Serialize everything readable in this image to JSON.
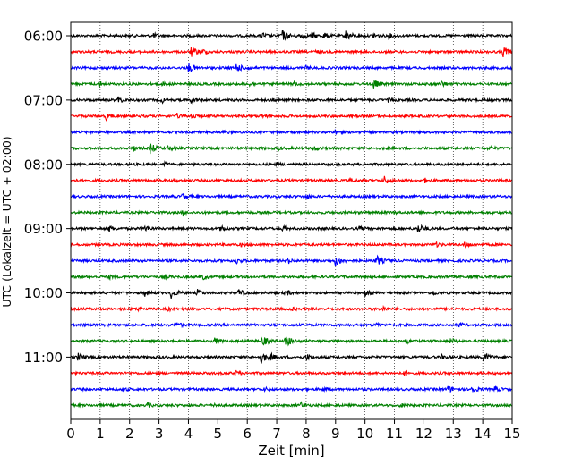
{
  "chart_data": {
    "type": "line",
    "title": "",
    "xlabel": "Zeit  [min]",
    "ylabel": "UTC (Lokalzeit = UTC + 02:00)",
    "xlim": [
      0,
      15
    ],
    "x_ticks": [
      "0",
      "1",
      "2",
      "3",
      "4",
      "5",
      "6",
      "7",
      "8",
      "9",
      "10",
      "11",
      "12",
      "13",
      "14",
      "15"
    ],
    "y_ticks": [
      {
        "label": "06:00",
        "trace": 0
      },
      {
        "label": "07:00",
        "trace": 4
      },
      {
        "label": "08:00",
        "trace": 8
      },
      {
        "label": "09:00",
        "trace": 12
      },
      {
        "label": "10:00",
        "trace": 16
      },
      {
        "label": "11:00",
        "trace": 20
      }
    ],
    "grid": "vertical dotted",
    "trace_interval_min": 15,
    "colors": [
      "#000000",
      "#ff0000",
      "#0000ff",
      "#008000"
    ],
    "traces": [
      {
        "start": "06:00",
        "color": "#000000",
        "events": [
          [
            2.8,
            0.4
          ],
          [
            6.5,
            0.5
          ],
          [
            7.15,
            1.0
          ],
          [
            7.8,
            0.5
          ],
          [
            8.2,
            0.5
          ],
          [
            8.6,
            0.5
          ],
          [
            9.35,
            0.8
          ],
          [
            10.3,
            0.5
          ],
          [
            10.8,
            0.4
          ]
        ]
      },
      {
        "start": "06:15",
        "color": "#ff0000",
        "events": [
          [
            4.1,
            0.8
          ],
          [
            4.5,
            0.4
          ],
          [
            8.3,
            0.3
          ],
          [
            14.7,
            0.9
          ]
        ]
      },
      {
        "start": "06:30",
        "color": "#0000ff",
        "events": [
          [
            4.0,
            0.8
          ],
          [
            5.6,
            0.8
          ],
          [
            6.0,
            0.4
          ],
          [
            8.0,
            0.3
          ]
        ]
      },
      {
        "start": "06:45",
        "color": "#008000",
        "events": [
          [
            1.0,
            0.3
          ],
          [
            3.1,
            0.3
          ],
          [
            6.1,
            0.4
          ],
          [
            7.6,
            0.3
          ],
          [
            10.3,
            0.7
          ],
          [
            12.6,
            0.5
          ]
        ]
      },
      {
        "start": "07:00",
        "color": "#000000",
        "events": [
          [
            1.6,
            0.5
          ],
          [
            3.1,
            0.4
          ],
          [
            4.1,
            0.5
          ],
          [
            6.9,
            0.3
          ],
          [
            10.8,
            0.3
          ]
        ]
      },
      {
        "start": "07:15",
        "color": "#ff0000",
        "events": [
          [
            1.2,
            0.5
          ],
          [
            3.6,
            0.4
          ],
          [
            4.1,
            0.5
          ],
          [
            6.5,
            0.3
          ]
        ]
      },
      {
        "start": "07:30",
        "color": "#0000ff",
        "events": [
          [
            5.2,
            0.3
          ],
          [
            9.0,
            0.3
          ]
        ]
      },
      {
        "start": "07:45",
        "color": "#008000",
        "events": [
          [
            2.1,
            0.5
          ],
          [
            2.7,
            0.8
          ],
          [
            3.3,
            0.4
          ],
          [
            7.0,
            0.4
          ],
          [
            8.2,
            0.5
          ],
          [
            14.2,
            0.4
          ]
        ]
      },
      {
        "start": "08:00",
        "color": "#000000",
        "events": [
          [
            3.2,
            0.3
          ],
          [
            7.0,
            0.3
          ]
        ]
      },
      {
        "start": "08:15",
        "color": "#ff0000",
        "events": [
          [
            3.5,
            0.3
          ],
          [
            9.5,
            0.3
          ],
          [
            10.65,
            0.7
          ],
          [
            12.0,
            0.4
          ]
        ]
      },
      {
        "start": "08:30",
        "color": "#0000ff",
        "events": [
          [
            3.8,
            0.5
          ],
          [
            8.0,
            0.3
          ]
        ]
      },
      {
        "start": "08:45",
        "color": "#008000",
        "events": [
          [
            3.8,
            0.3
          ],
          [
            11.0,
            0.2
          ]
        ]
      },
      {
        "start": "09:00",
        "color": "#000000",
        "events": [
          [
            1.3,
            0.5
          ],
          [
            2.5,
            0.5
          ],
          [
            5.1,
            0.5
          ],
          [
            7.2,
            0.4
          ],
          [
            9.8,
            0.3
          ],
          [
            11.8,
            0.8
          ]
        ]
      },
      {
        "start": "09:15",
        "color": "#ff0000",
        "events": [
          [
            5.8,
            0.3
          ],
          [
            12.4,
            0.4
          ],
          [
            13.4,
            0.5
          ]
        ]
      },
      {
        "start": "09:30",
        "color": "#0000ff",
        "events": [
          [
            5.6,
            0.5
          ],
          [
            7.4,
            0.4
          ],
          [
            9.0,
            0.8
          ],
          [
            10.4,
            0.8
          ]
        ]
      },
      {
        "start": "09:45",
        "color": "#008000",
        "events": [
          [
            1.3,
            0.3
          ],
          [
            3.2,
            0.3
          ],
          [
            4.5,
            0.4
          ]
        ]
      },
      {
        "start": "10:00",
        "color": "#000000",
        "events": [
          [
            2.5,
            0.5
          ],
          [
            3.4,
            0.8
          ],
          [
            4.3,
            0.5
          ],
          [
            5.7,
            0.6
          ],
          [
            7.3,
            0.5
          ],
          [
            10.0,
            0.5
          ],
          [
            12.3,
            0.4
          ]
        ]
      },
      {
        "start": "10:15",
        "color": "#ff0000",
        "events": [
          [
            2.3,
            0.3
          ],
          [
            3.3,
            0.3
          ],
          [
            7.5,
            0.3
          ],
          [
            10.6,
            0.4
          ]
        ]
      },
      {
        "start": "10:30",
        "color": "#0000ff",
        "events": [
          [
            3.6,
            0.5
          ],
          [
            10.4,
            0.3
          ],
          [
            13.2,
            0.4
          ]
        ]
      },
      {
        "start": "10:45",
        "color": "#008000",
        "events": [
          [
            4.9,
            0.5
          ],
          [
            6.5,
            0.8
          ],
          [
            7.3,
            0.9
          ],
          [
            11.4,
            0.4
          ],
          [
            12.9,
            0.5
          ]
        ]
      },
      {
        "start": "11:00",
        "color": "#000000",
        "events": [
          [
            0.25,
            0.6
          ],
          [
            6.45,
            1.0
          ],
          [
            6.8,
            0.4
          ],
          [
            8.0,
            0.5
          ],
          [
            12.6,
            0.4
          ],
          [
            14.0,
            0.8
          ]
        ]
      },
      {
        "start": "11:15",
        "color": "#ff0000",
        "events": [
          [
            5.6,
            0.4
          ],
          [
            11.3,
            0.4
          ]
        ]
      },
      {
        "start": "11:30",
        "color": "#0000ff",
        "events": [
          [
            1.8,
            0.3
          ],
          [
            6.6,
            0.3
          ],
          [
            8.6,
            0.3
          ],
          [
            12.8,
            0.6
          ],
          [
            13.6,
            0.6
          ],
          [
            14.4,
            0.5
          ]
        ]
      },
      {
        "start": "11:45",
        "color": "#008000",
        "events": [
          [
            2.6,
            0.4
          ],
          [
            4.9,
            0.3
          ],
          [
            7.8,
            0.5
          ],
          [
            11.2,
            0.3
          ]
        ]
      }
    ]
  }
}
